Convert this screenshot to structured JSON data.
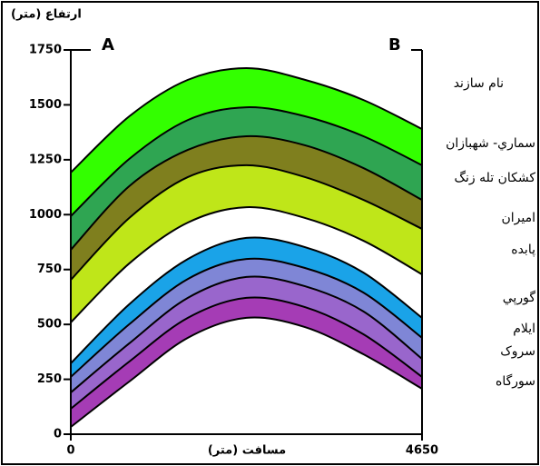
{
  "chart_data": {
    "type": "layers",
    "y_axis_label": "ارتفاع (متر)",
    "x_axis_label": "مسافت (متر)",
    "legend_title": "نام سازند",
    "left_label": "A",
    "right_label": "B",
    "x": [
      0,
      775,
      1550,
      2325,
      3100,
      3875,
      4650
    ],
    "xlim": [
      0,
      4650
    ],
    "xticks": [
      0,
      4650
    ],
    "ylim": [
      0,
      1750
    ],
    "yticks": [
      0,
      250,
      500,
      750,
      1000,
      1250,
      1500,
      1750
    ],
    "series": [
      {
        "name": "سماري- شهبازان",
        "color": "#33ff00",
        "values": [
          1192,
          1448,
          1614,
          1667,
          1614,
          1522,
          1390
        ]
      },
      {
        "name": "كشكان تله زنگ",
        "color": "#2fa552",
        "values": [
          993,
          1254,
          1431,
          1489,
          1448,
          1357,
          1225
        ]
      },
      {
        "name": "اميران",
        "color": "#7f7f1e",
        "values": [
          840,
          1130,
          1295,
          1357,
          1316,
          1212,
          1067
        ]
      },
      {
        "name": "پابده",
        "color": "#bfe619",
        "values": [
          703,
          985,
          1171,
          1225,
          1171,
          1067,
          935
        ],
        "base": [
          509,
          778,
          964,
          1034,
          985,
          881,
          728
        ]
      },
      {
        "name": "گورپي",
        "color": "#1aa3e8",
        "values": [
          323,
          592,
          798,
          894,
          852,
          736,
          530
        ]
      },
      {
        "name": "ايلام",
        "color": "#7f86d6",
        "values": [
          261,
          501,
          707,
          798,
          757,
          645,
          439
        ]
      },
      {
        "name": "سروک",
        "color": "#9966cc",
        "values": [
          190,
          414,
          621,
          716,
          674,
          559,
          343
        ]
      },
      {
        "name": "سورگاه",
        "color": "#a53cb5",
        "values": [
          116,
          331,
          530,
          621,
          579,
          455,
          261
        ],
        "base": [
          33,
          240,
          439,
          530,
          488,
          364,
          207
        ]
      }
    ]
  }
}
